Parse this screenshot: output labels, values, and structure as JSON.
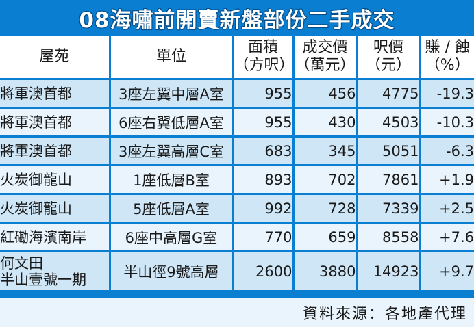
{
  "title": "08海嘯前開賣新盤部份二手成交",
  "columns": [
    {
      "line1": "屋苑",
      "line2": ""
    },
    {
      "line1": "單位",
      "line2": ""
    },
    {
      "line1": "面積",
      "line2": "（方呎）"
    },
    {
      "line1": "成交價",
      "line2": "（萬元）"
    },
    {
      "line1": "呎價",
      "line2": "（元）"
    },
    {
      "line1": "賺 / 蝕",
      "line2": "（%）"
    }
  ],
  "rows": [
    {
      "estate": [
        "將軍澳首都"
      ],
      "unit": "3座左翼中層A室",
      "area": "955",
      "price": "456",
      "psf": "4775",
      "change": "-19.3"
    },
    {
      "estate": [
        "將軍澳首都"
      ],
      "unit": "6座右翼低層A室",
      "area": "955",
      "price": "430",
      "psf": "4503",
      "change": "-10.3"
    },
    {
      "estate": [
        "將軍澳首都"
      ],
      "unit": "3座左翼高層C室",
      "area": "683",
      "price": "345",
      "psf": "5051",
      "change": "-6.3"
    },
    {
      "estate": [
        "火炭御龍山"
      ],
      "unit": "1座低層B室",
      "area": "893",
      "price": "702",
      "psf": "7861",
      "change": "+1.9"
    },
    {
      "estate": [
        "火炭御龍山"
      ],
      "unit": "5座低層A室",
      "area": "992",
      "price": "728",
      "psf": "7339",
      "change": "+2.5"
    },
    {
      "estate": [
        "紅磡海濱南岸"
      ],
      "unit": "6座中高層G室",
      "area": "770",
      "price": "659",
      "psf": "8558",
      "change": "+7.6"
    },
    {
      "estate": [
        "何文田",
        "半山壹號一期"
      ],
      "unit": "半山徑9號高層",
      "area": "2600",
      "price": "3880",
      "psf": "14923",
      "change": "+9.7"
    }
  ],
  "source": "資料來源：各地產代理",
  "colors": {
    "frame": "#0a7fd2",
    "shade_a": "#cfe6f7",
    "shade_b": "#e9f4fc",
    "header_bg": "#ffffff"
  }
}
